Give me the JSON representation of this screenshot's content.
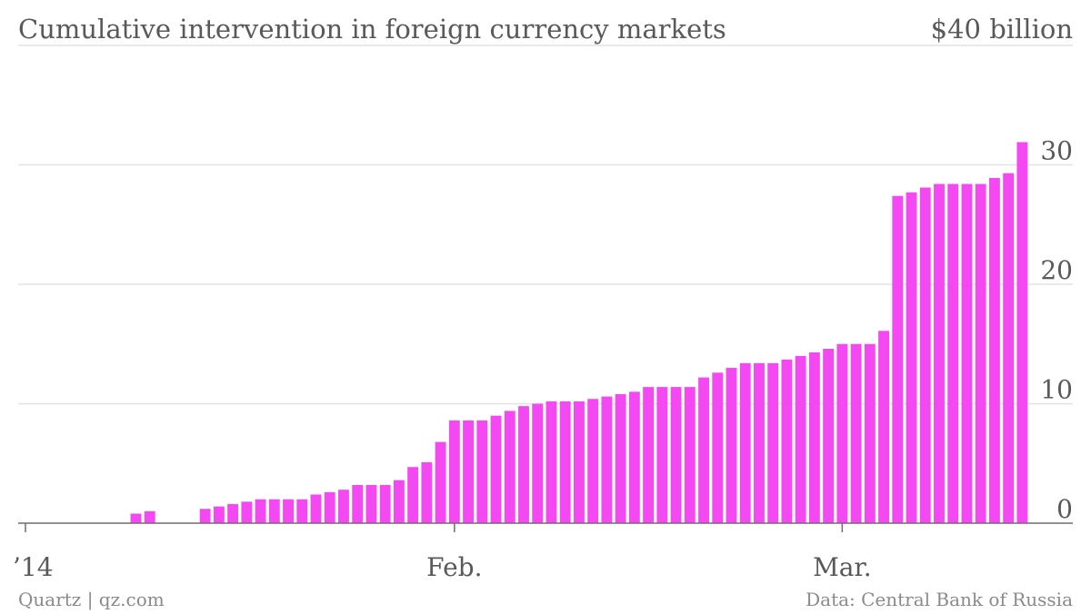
{
  "header": {
    "title": "Cumulative intervention in foreign currency markets",
    "unit_label": "$40 billion"
  },
  "footer": {
    "credit": "Quartz | qz.com",
    "source": "Data: Central Bank of Russia"
  },
  "colors": {
    "bar": "#f449f2",
    "grid": "#e2e2e2",
    "baseline": "#6e6e6e",
    "text": "#595959"
  },
  "chart_data": {
    "type": "bar",
    "ylim": [
      0,
      40
    ],
    "y_ticks": [
      {
        "value": 0,
        "label": "0"
      },
      {
        "value": 10,
        "label": "10"
      },
      {
        "value": 20,
        "label": "20"
      },
      {
        "value": 30,
        "label": "30"
      }
    ],
    "x_ticks": [
      {
        "label": "’14",
        "index": 0
      },
      {
        "label": "Feb.",
        "index": 31
      },
      {
        "label": "Mar.",
        "index": 59
      }
    ],
    "grid": true,
    "values": [
      0,
      0,
      0,
      0,
      0,
      0,
      0,
      0,
      0.8,
      1.0,
      0,
      0,
      0,
      1.2,
      1.4,
      1.6,
      1.8,
      2.0,
      2.0,
      2.0,
      2.0,
      2.4,
      2.6,
      2.8,
      3.2,
      3.2,
      3.2,
      3.6,
      4.7,
      5.1,
      6.8,
      8.6,
      8.6,
      8.6,
      9.0,
      9.4,
      9.8,
      10.0,
      10.2,
      10.2,
      10.2,
      10.4,
      10.6,
      10.8,
      11.0,
      11.4,
      11.4,
      11.4,
      11.4,
      12.2,
      12.6,
      13.0,
      13.4,
      13.4,
      13.4,
      13.7,
      14.0,
      14.3,
      14.6,
      15.0,
      15.0,
      15.0,
      16.1,
      27.4,
      27.7,
      28.1,
      28.4,
      28.4,
      28.4,
      28.4,
      28.9,
      29.3,
      31.9
    ]
  }
}
